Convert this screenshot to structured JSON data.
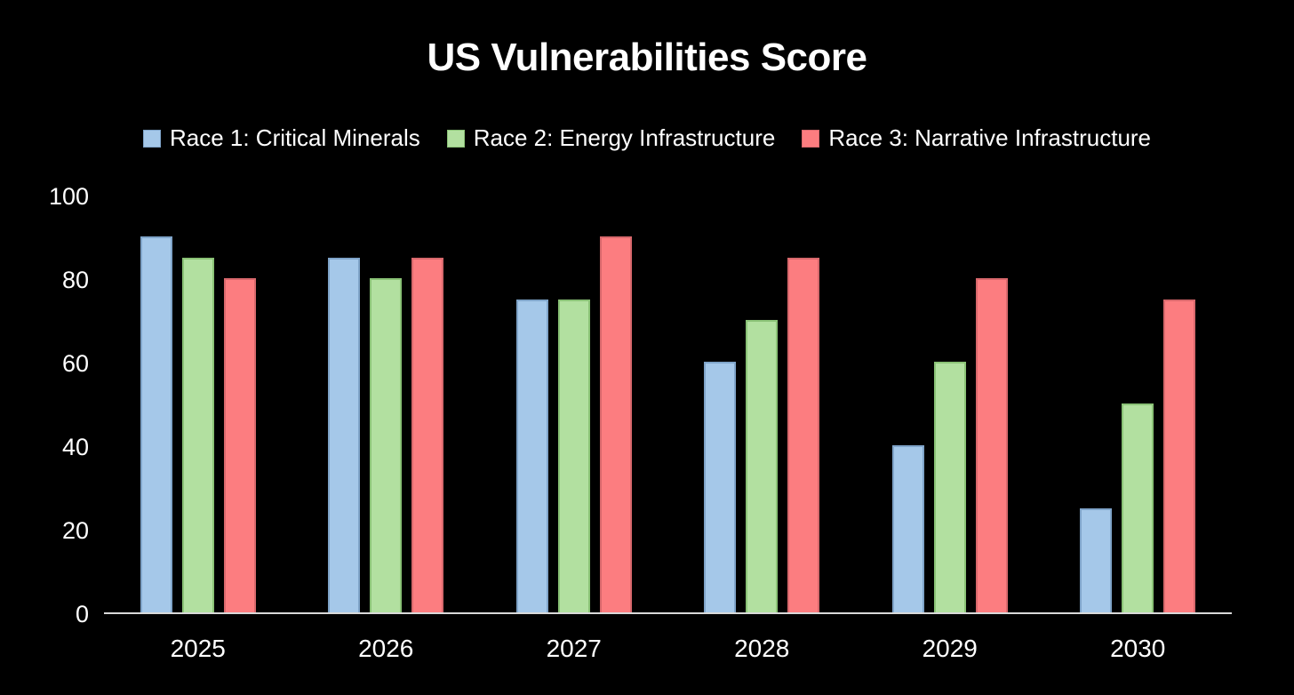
{
  "colors": {
    "background": "#000000",
    "text": "#ffffff",
    "axis_line": "#d9d9d9"
  },
  "chart_data": {
    "type": "bar",
    "title": "US Vulnerabilities Score",
    "categories": [
      "2025",
      "2026",
      "2027",
      "2028",
      "2029",
      "2030"
    ],
    "series": [
      {
        "name": "Race 1: Critical Minerals",
        "color": "#a5c8e9",
        "border_color": "#7fa4c9",
        "values": [
          90,
          85,
          75,
          60,
          40,
          25
        ]
      },
      {
        "name": "Race 2: Energy Infrastructure",
        "color": "#b2e0a0",
        "border_color": "#8ac276",
        "values": [
          85,
          80,
          75,
          70,
          60,
          50
        ]
      },
      {
        "name": "Race 3: Narrative Infrastructure",
        "color": "#fc7d80",
        "border_color": "#d8686c",
        "values": [
          80,
          85,
          90,
          85,
          80,
          75
        ]
      }
    ],
    "y_axis": {
      "min": 0,
      "max": 100,
      "ticks": [
        0,
        20,
        40,
        60,
        80,
        100
      ]
    },
    "xlabel": "",
    "ylabel": "",
    "legend_position": "top",
    "grid": false
  }
}
